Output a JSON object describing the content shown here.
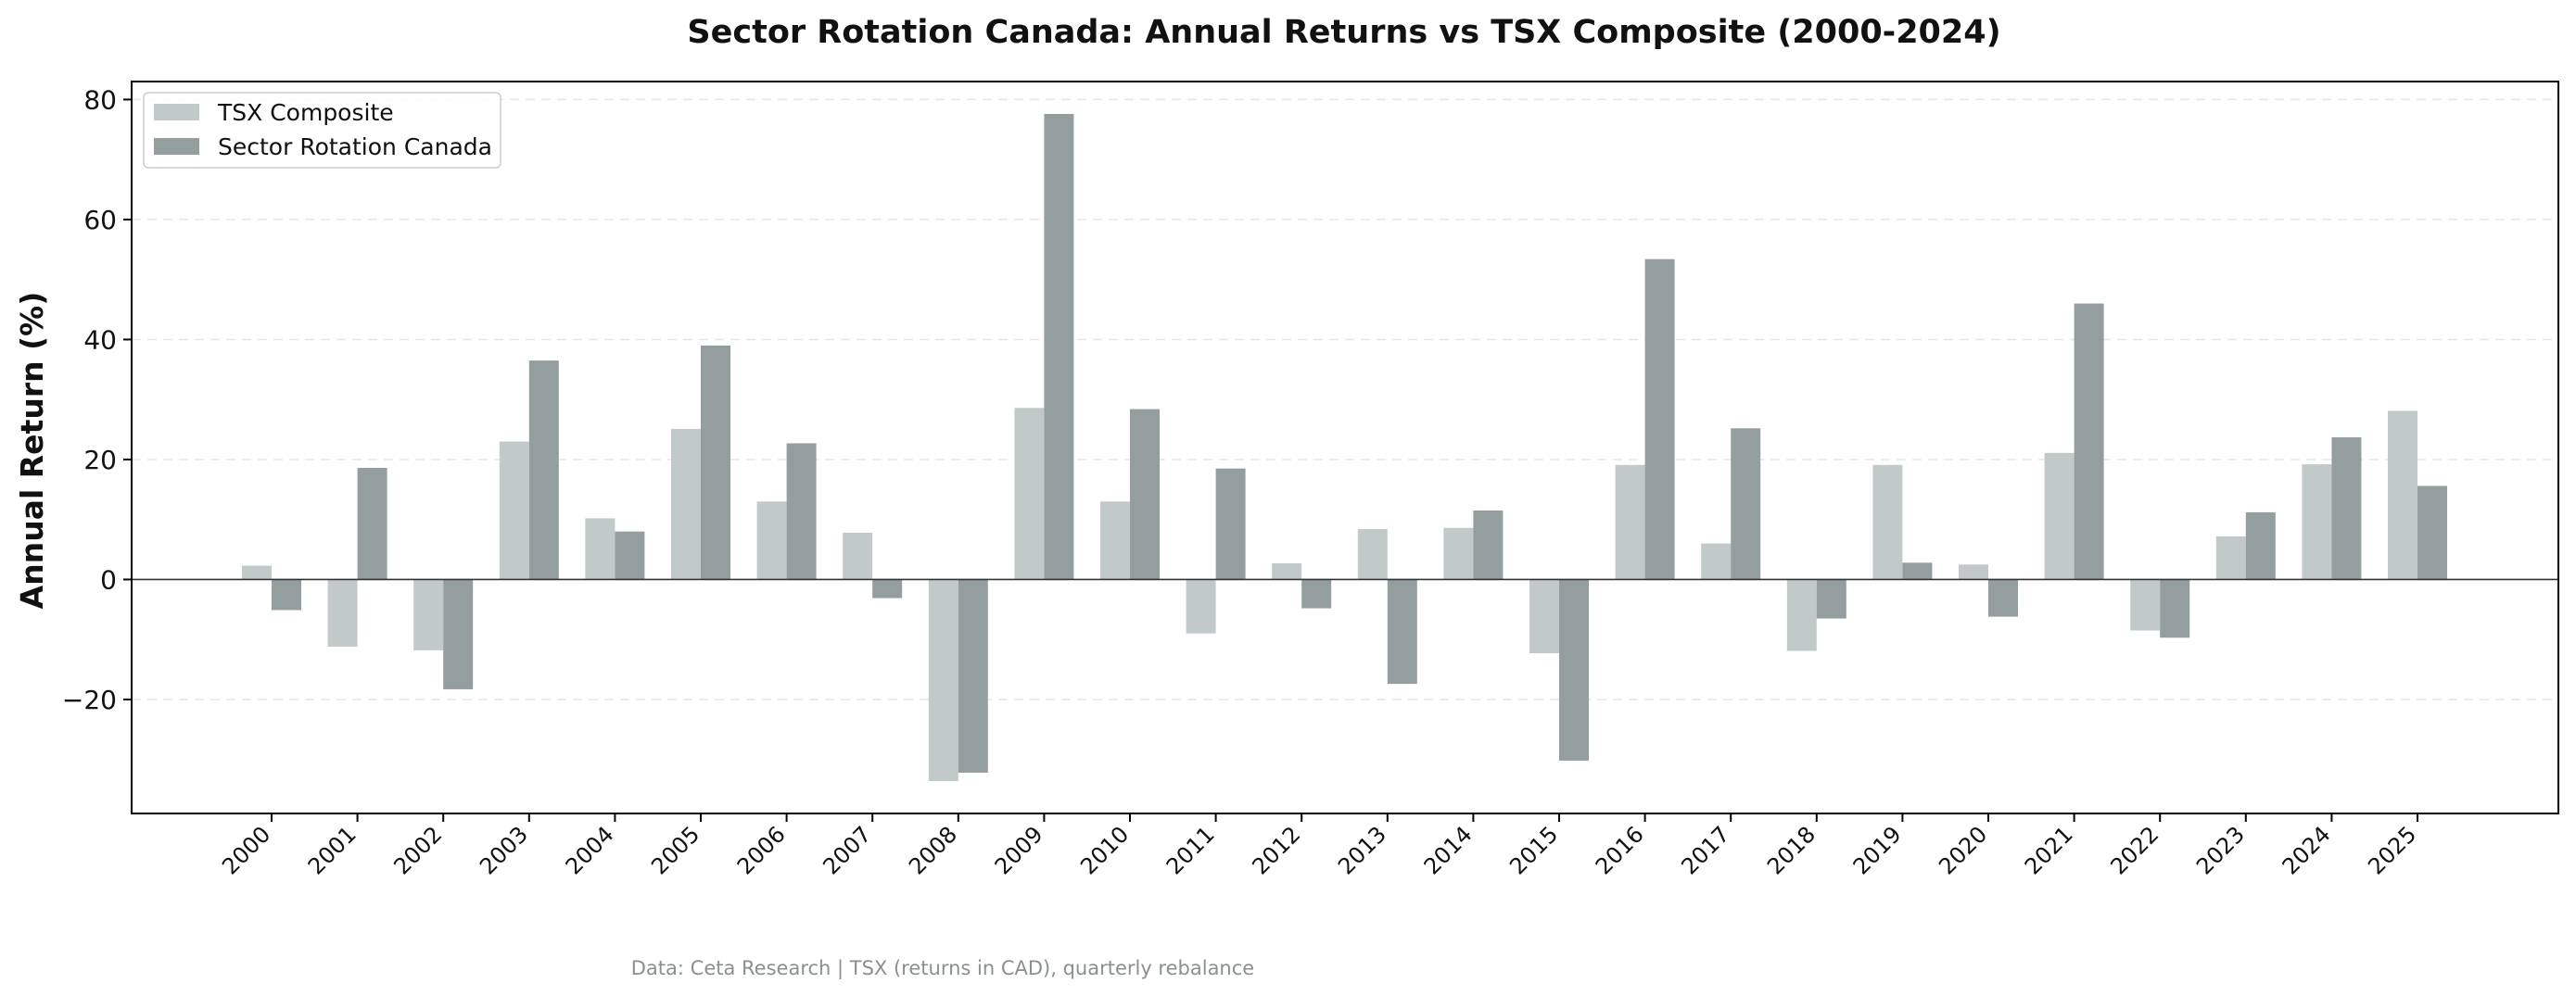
{
  "colors": {
    "tsx": "#c2c9c9",
    "strategy": "#949e9e",
    "grid": "#e6e6e6",
    "axis": "#000000",
    "zero_line": "#333333",
    "caption": "#8a8f91"
  },
  "caption": "Data: Ceta Research | TSX (returns in CAD), quarterly rebalance",
  "chart_data": {
    "type": "bar",
    "title": "Sector Rotation Canada: Annual Returns vs TSX Composite (2000-2024)",
    "xlabel": "",
    "ylabel": "Annual Return (%)",
    "ylim": [
      -39,
      83
    ],
    "yticks": [
      80,
      60,
      40,
      20,
      0,
      -20
    ],
    "ytick_labels": [
      "80",
      "60",
      "40",
      "20",
      "0",
      "−20"
    ],
    "grid": "horizontal dashed",
    "legend_position": "top-left",
    "categories": [
      "2000",
      "2001",
      "2002",
      "2003",
      "2004",
      "2005",
      "2006",
      "2007",
      "2008",
      "2009",
      "2010",
      "2011",
      "2012",
      "2013",
      "2014",
      "2015",
      "2016",
      "2017",
      "2018",
      "2019",
      "2020",
      "2021",
      "2022",
      "2023",
      "2024",
      "2025"
    ],
    "series": [
      {
        "name": "TSX Composite",
        "values": [
          2.3,
          -11.2,
          -11.8,
          23.0,
          10.2,
          25.1,
          13.0,
          7.8,
          -33.6,
          28.6,
          13.0,
          -9.0,
          2.7,
          8.4,
          8.6,
          -12.3,
          19.1,
          6.0,
          -11.9,
          19.1,
          2.5,
          21.1,
          -8.5,
          7.2,
          19.2,
          28.1
        ]
      },
      {
        "name": "Sector Rotation Canada",
        "values": [
          -5.1,
          18.6,
          -18.3,
          36.5,
          8.0,
          39.0,
          22.7,
          -3.1,
          -32.2,
          77.6,
          28.4,
          18.5,
          -4.8,
          -17.4,
          11.5,
          -30.2,
          53.4,
          25.2,
          -6.5,
          2.8,
          -6.2,
          46.0,
          -9.7,
          11.2,
          23.7,
          15.6
        ]
      }
    ]
  }
}
